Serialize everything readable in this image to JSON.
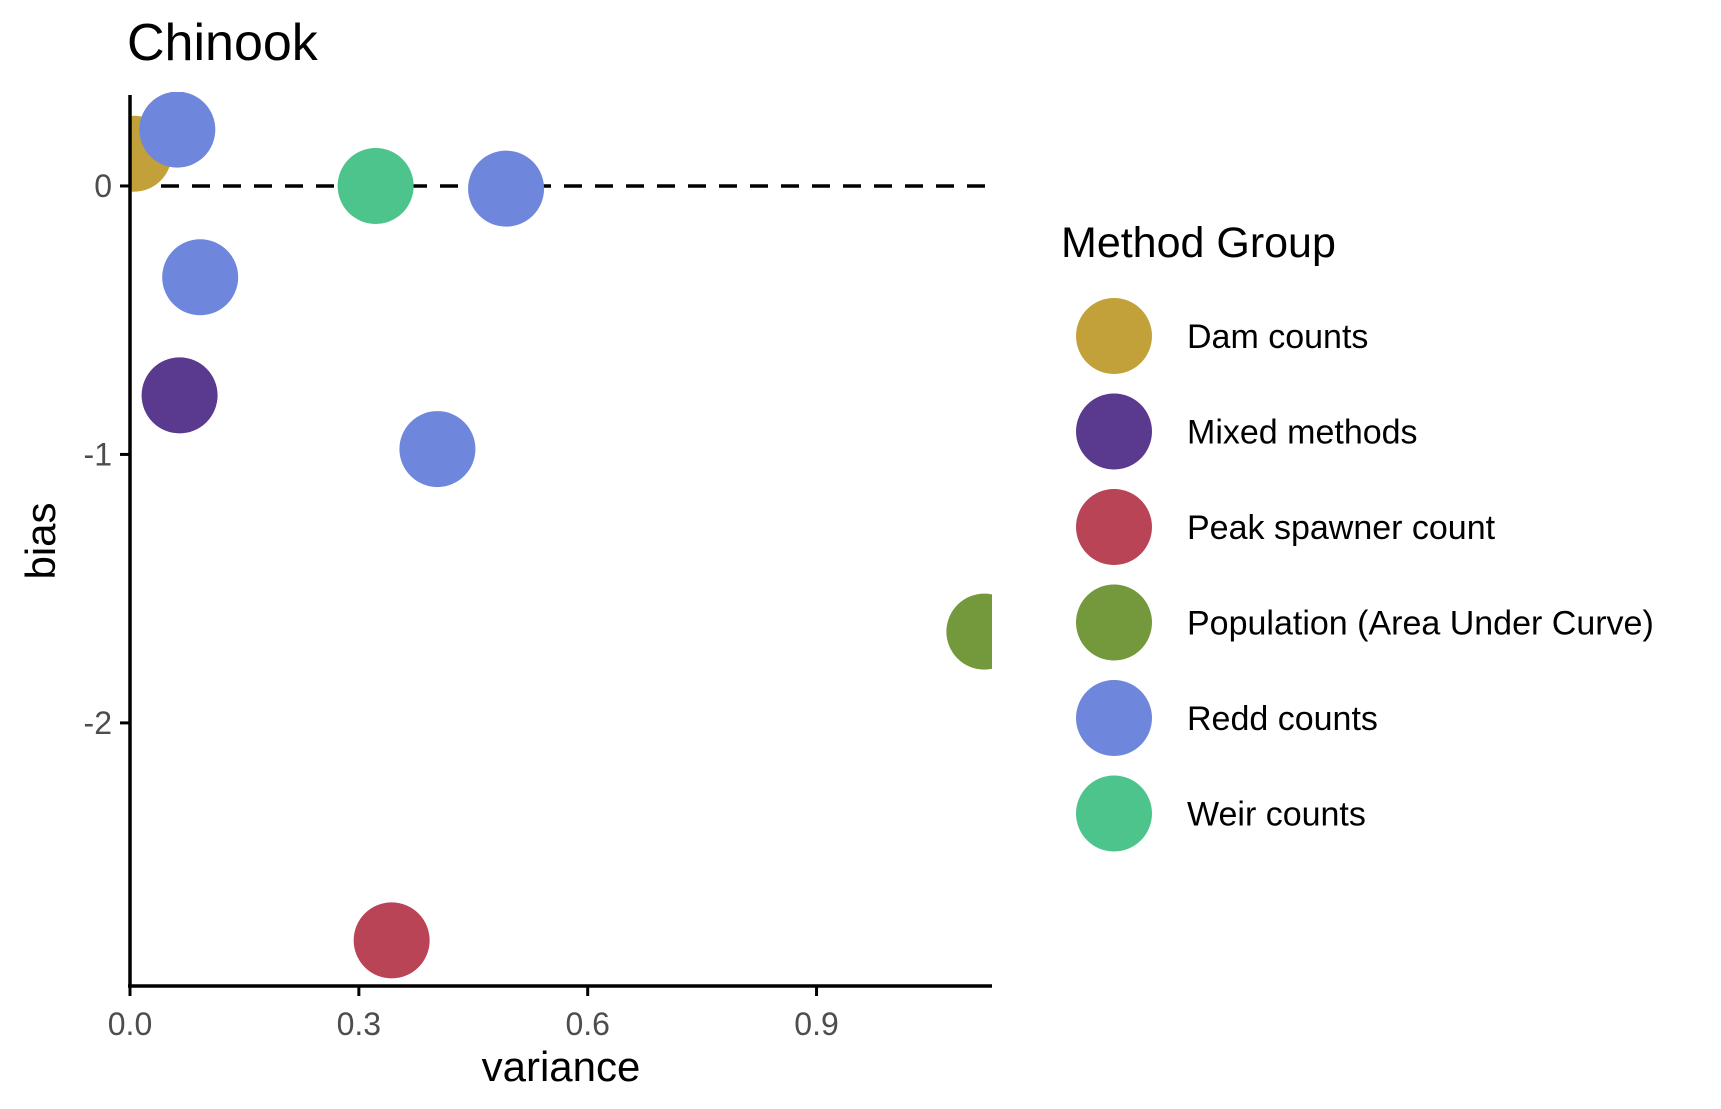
{
  "chart_data": {
    "type": "scatter",
    "title": "Chinook",
    "xlabel": "variance",
    "ylabel": "bias",
    "xlim": [
      0.0,
      1.13
    ],
    "ylim": [
      -2.98,
      0.35
    ],
    "x_ticks": [
      0.0,
      0.3,
      0.6,
      0.9
    ],
    "x_tick_labels": [
      "0.0",
      "0.3",
      "0.6",
      "0.9"
    ],
    "y_ticks": [
      0,
      -1,
      -2
    ],
    "y_tick_labels": [
      "0",
      "-1",
      "-2"
    ],
    "reference_line": {
      "y": 0,
      "style": "dashed"
    },
    "grid": false,
    "legend": {
      "title": "Method Group",
      "position": "right",
      "entries": [
        {
          "name": "Dam counts",
          "color": "#c3a13a"
        },
        {
          "name": "Mixed methods",
          "color": "#5a3a8e"
        },
        {
          "name": "Peak spawner count",
          "color": "#b84456"
        },
        {
          "name": "Population (Area Under Curve)",
          "color": "#73993c"
        },
        {
          "name": "Redd counts",
          "color": "#6e86dc"
        },
        {
          "name": "Weir counts",
          "color": "#4dc48c"
        }
      ]
    },
    "points": [
      {
        "group": "Dam counts",
        "x": 0.005,
        "y": 0.12
      },
      {
        "group": "Redd counts",
        "x": 0.062,
        "y": 0.21
      },
      {
        "group": "Weir counts",
        "x": 0.322,
        "y": 0.0
      },
      {
        "group": "Redd counts",
        "x": 0.493,
        "y": -0.01
      },
      {
        "group": "Redd counts",
        "x": 0.092,
        "y": -0.34
      },
      {
        "group": "Mixed methods",
        "x": 0.065,
        "y": -0.78
      },
      {
        "group": "Redd counts",
        "x": 0.403,
        "y": -0.98
      },
      {
        "group": "Population (Area Under Curve)",
        "x": 1.12,
        "y": -1.66
      },
      {
        "group": "Peak spawner count",
        "x": 0.343,
        "y": -2.81
      }
    ]
  }
}
